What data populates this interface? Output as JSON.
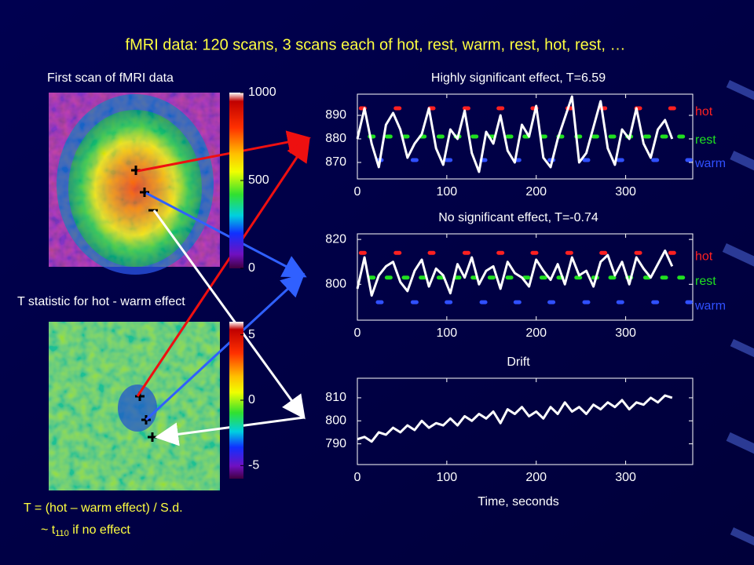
{
  "title": "fMRI data: 120 scans, 3 scans each of hot, rest, warm, rest, hot, rest, …",
  "maps": [
    {
      "title": "First scan of fMRI data",
      "clim": [
        0,
        1000
      ],
      "ticks": [
        0,
        500,
        1000
      ]
    },
    {
      "title": "T statistic for hot - warm effect",
      "clim": [
        -6,
        6
      ],
      "ticks": [
        -5,
        0,
        5
      ]
    }
  ],
  "note": {
    "line1": "T = (hot – warm effect) / S.d.",
    "line2": "~ t",
    "line2_sub": "110",
    "line2_end": " if no effect"
  },
  "chart_data": [
    {
      "type": "line",
      "title": "Highly significant effect, T=6.59",
      "color": "#ffffff",
      "x": [
        0,
        8,
        16,
        24,
        32,
        40,
        48,
        56,
        64,
        72,
        80,
        88,
        96,
        104,
        112,
        120,
        128,
        136,
        144,
        152,
        160,
        168,
        176,
        184,
        192,
        200,
        208,
        216,
        224,
        232,
        240,
        248,
        256,
        264,
        272,
        280,
        288,
        296,
        304,
        312,
        320,
        328,
        336,
        344,
        352
      ],
      "values": [
        880,
        893,
        878,
        868,
        886,
        891,
        884,
        872,
        878,
        882,
        893,
        876,
        869,
        884,
        880,
        892,
        874,
        866,
        883,
        878,
        890,
        875,
        870,
        886,
        881,
        894,
        872,
        868,
        880,
        889,
        898,
        870,
        874,
        885,
        896,
        876,
        869,
        884,
        880,
        893,
        878,
        872,
        884,
        888,
        880
      ],
      "series": [
        {
          "name": "hot",
          "color": "#ff2020",
          "x": [
            6,
            45,
            83,
            122,
            160,
            198,
            237,
            275,
            314,
            352
          ],
          "values": [
            893,
            893,
            893,
            893,
            893,
            893,
            893,
            893,
            893,
            893
          ]
        },
        {
          "name": "rest",
          "color": "#20e020",
          "x": [
            16,
            35,
            54,
            73,
            93,
            112,
            131,
            150,
            170,
            189,
            208,
            227,
            247,
            266,
            285,
            304,
            324,
            343,
            362
          ],
          "values": [
            881,
            881,
            881,
            881,
            881,
            881,
            881,
            881,
            881,
            881,
            881,
            881,
            881,
            881,
            881,
            881,
            881,
            881,
            881
          ]
        },
        {
          "name": "warm",
          "color": "#3050ff",
          "x": [
            25,
            64,
            102,
            141,
            179,
            217,
            256,
            294,
            333,
            371
          ],
          "values": [
            871,
            871,
            871,
            871,
            871,
            871,
            871,
            871,
            871,
            871
          ]
        }
      ],
      "xlim": [
        0,
        375
      ],
      "xticks": [
        0,
        100,
        200,
        300
      ],
      "ylim": [
        863,
        899
      ],
      "yticks": [
        870,
        880,
        890
      ]
    },
    {
      "type": "line",
      "title": "No significant effect, T=-0.74",
      "color": "#ffffff",
      "x": [
        0,
        8,
        16,
        24,
        32,
        40,
        48,
        56,
        64,
        72,
        80,
        88,
        96,
        104,
        112,
        120,
        128,
        136,
        144,
        152,
        160,
        168,
        176,
        184,
        192,
        200,
        208,
        216,
        224,
        232,
        240,
        248,
        256,
        264,
        272,
        280,
        288,
        296,
        304,
        312,
        320,
        328,
        336,
        344,
        352
      ],
      "values": [
        798,
        812,
        795,
        804,
        808,
        810,
        801,
        797,
        806,
        811,
        799,
        807,
        804,
        796,
        809,
        803,
        812,
        800,
        806,
        808,
        798,
        810,
        805,
        803,
        799,
        811,
        806,
        802,
        809,
        800,
        812,
        804,
        806,
        799,
        810,
        813,
        804,
        810,
        800,
        812,
        807,
        803,
        809,
        815,
        808
      ],
      "series": [
        {
          "name": "hot",
          "color": "#ff2020",
          "x": [
            6,
            45,
            83,
            122,
            160,
            198,
            237,
            275,
            314,
            352
          ],
          "values": [
            814,
            814,
            814,
            814,
            814,
            814,
            814,
            814,
            814,
            814
          ]
        },
        {
          "name": "rest",
          "color": "#20e020",
          "x": [
            16,
            35,
            54,
            73,
            93,
            112,
            131,
            150,
            170,
            189,
            208,
            227,
            247,
            266,
            285,
            304,
            324,
            343,
            362
          ],
          "values": [
            803,
            803,
            803,
            803,
            803,
            803,
            803,
            803,
            803,
            803,
            803,
            803,
            803,
            803,
            803,
            803,
            803,
            803,
            803
          ]
        },
        {
          "name": "warm",
          "color": "#3050ff",
          "x": [
            25,
            64,
            102,
            141,
            179,
            217,
            256,
            294,
            333,
            371
          ],
          "values": [
            792,
            792,
            792,
            792,
            792,
            792,
            792,
            792,
            792,
            792
          ]
        }
      ],
      "xlim": [
        0,
        375
      ],
      "xticks": [
        0,
        100,
        200,
        300
      ],
      "ylim": [
        784,
        822.5
      ],
      "yticks": [
        800,
        820
      ]
    },
    {
      "type": "line",
      "title": "Drift",
      "xlabel": "Time, seconds",
      "color": "#ffffff",
      "x": [
        0,
        8,
        16,
        24,
        32,
        40,
        48,
        56,
        64,
        72,
        80,
        88,
        96,
        104,
        112,
        120,
        128,
        136,
        144,
        152,
        160,
        168,
        176,
        184,
        192,
        200,
        208,
        216,
        224,
        232,
        240,
        248,
        256,
        264,
        272,
        280,
        288,
        296,
        304,
        312,
        320,
        328,
        336,
        344,
        352
      ],
      "values": [
        792,
        793,
        791,
        795,
        794,
        797,
        795,
        798,
        796,
        800,
        797,
        799,
        798,
        801,
        798,
        802,
        800,
        803,
        801,
        804,
        799,
        805,
        803,
        806,
        802,
        804,
        801,
        806,
        803,
        808,
        804,
        806,
        803,
        807,
        805,
        808,
        806,
        809,
        805,
        808,
        807,
        810,
        808,
        811,
        810
      ],
      "xlim": [
        0,
        375
      ],
      "xticks": [
        0,
        100,
        200,
        300
      ],
      "ylim": [
        781,
        818.5
      ],
      "yticks": [
        790,
        800,
        810
      ]
    }
  ]
}
